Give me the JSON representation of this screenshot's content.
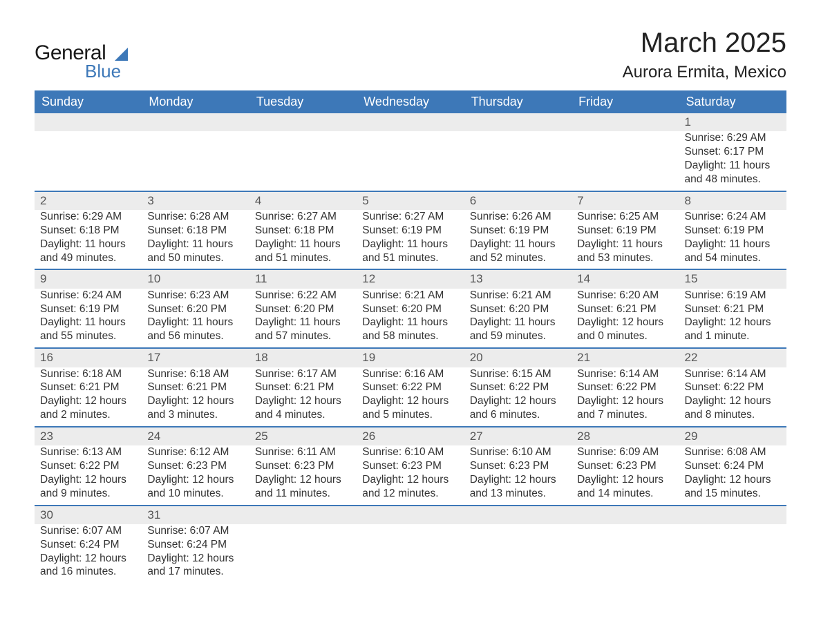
{
  "brand": {
    "name1": "General",
    "name2": "Blue",
    "accent": "#3d78b8"
  },
  "title": {
    "monthYear": "March 2025",
    "location": "Aurora Ermita, Mexico"
  },
  "calendar": {
    "type": "table",
    "headerBg": "#3d78b8",
    "headerText": "#ffffff",
    "altRowBg": "#ececec",
    "borderColor": "#3d78b8",
    "days": [
      "Sunday",
      "Monday",
      "Tuesday",
      "Wednesday",
      "Thursday",
      "Friday",
      "Saturday"
    ],
    "weeks": [
      [
        null,
        null,
        null,
        null,
        null,
        null,
        {
          "n": "1",
          "sr": "Sunrise: 6:29 AM",
          "ss": "Sunset: 6:17 PM",
          "dl": "Daylight: 11 hours and 48 minutes."
        }
      ],
      [
        {
          "n": "2",
          "sr": "Sunrise: 6:29 AM",
          "ss": "Sunset: 6:18 PM",
          "dl": "Daylight: 11 hours and 49 minutes."
        },
        {
          "n": "3",
          "sr": "Sunrise: 6:28 AM",
          "ss": "Sunset: 6:18 PM",
          "dl": "Daylight: 11 hours and 50 minutes."
        },
        {
          "n": "4",
          "sr": "Sunrise: 6:27 AM",
          "ss": "Sunset: 6:18 PM",
          "dl": "Daylight: 11 hours and 51 minutes."
        },
        {
          "n": "5",
          "sr": "Sunrise: 6:27 AM",
          "ss": "Sunset: 6:19 PM",
          "dl": "Daylight: 11 hours and 51 minutes."
        },
        {
          "n": "6",
          "sr": "Sunrise: 6:26 AM",
          "ss": "Sunset: 6:19 PM",
          "dl": "Daylight: 11 hours and 52 minutes."
        },
        {
          "n": "7",
          "sr": "Sunrise: 6:25 AM",
          "ss": "Sunset: 6:19 PM",
          "dl": "Daylight: 11 hours and 53 minutes."
        },
        {
          "n": "8",
          "sr": "Sunrise: 6:24 AM",
          "ss": "Sunset: 6:19 PM",
          "dl": "Daylight: 11 hours and 54 minutes."
        }
      ],
      [
        {
          "n": "9",
          "sr": "Sunrise: 6:24 AM",
          "ss": "Sunset: 6:19 PM",
          "dl": "Daylight: 11 hours and 55 minutes."
        },
        {
          "n": "10",
          "sr": "Sunrise: 6:23 AM",
          "ss": "Sunset: 6:20 PM",
          "dl": "Daylight: 11 hours and 56 minutes."
        },
        {
          "n": "11",
          "sr": "Sunrise: 6:22 AM",
          "ss": "Sunset: 6:20 PM",
          "dl": "Daylight: 11 hours and 57 minutes."
        },
        {
          "n": "12",
          "sr": "Sunrise: 6:21 AM",
          "ss": "Sunset: 6:20 PM",
          "dl": "Daylight: 11 hours and 58 minutes."
        },
        {
          "n": "13",
          "sr": "Sunrise: 6:21 AM",
          "ss": "Sunset: 6:20 PM",
          "dl": "Daylight: 11 hours and 59 minutes."
        },
        {
          "n": "14",
          "sr": "Sunrise: 6:20 AM",
          "ss": "Sunset: 6:21 PM",
          "dl": "Daylight: 12 hours and 0 minutes."
        },
        {
          "n": "15",
          "sr": "Sunrise: 6:19 AM",
          "ss": "Sunset: 6:21 PM",
          "dl": "Daylight: 12 hours and 1 minute."
        }
      ],
      [
        {
          "n": "16",
          "sr": "Sunrise: 6:18 AM",
          "ss": "Sunset: 6:21 PM",
          "dl": "Daylight: 12 hours and 2 minutes."
        },
        {
          "n": "17",
          "sr": "Sunrise: 6:18 AM",
          "ss": "Sunset: 6:21 PM",
          "dl": "Daylight: 12 hours and 3 minutes."
        },
        {
          "n": "18",
          "sr": "Sunrise: 6:17 AM",
          "ss": "Sunset: 6:21 PM",
          "dl": "Daylight: 12 hours and 4 minutes."
        },
        {
          "n": "19",
          "sr": "Sunrise: 6:16 AM",
          "ss": "Sunset: 6:22 PM",
          "dl": "Daylight: 12 hours and 5 minutes."
        },
        {
          "n": "20",
          "sr": "Sunrise: 6:15 AM",
          "ss": "Sunset: 6:22 PM",
          "dl": "Daylight: 12 hours and 6 minutes."
        },
        {
          "n": "21",
          "sr": "Sunrise: 6:14 AM",
          "ss": "Sunset: 6:22 PM",
          "dl": "Daylight: 12 hours and 7 minutes."
        },
        {
          "n": "22",
          "sr": "Sunrise: 6:14 AM",
          "ss": "Sunset: 6:22 PM",
          "dl": "Daylight: 12 hours and 8 minutes."
        }
      ],
      [
        {
          "n": "23",
          "sr": "Sunrise: 6:13 AM",
          "ss": "Sunset: 6:22 PM",
          "dl": "Daylight: 12 hours and 9 minutes."
        },
        {
          "n": "24",
          "sr": "Sunrise: 6:12 AM",
          "ss": "Sunset: 6:23 PM",
          "dl": "Daylight: 12 hours and 10 minutes."
        },
        {
          "n": "25",
          "sr": "Sunrise: 6:11 AM",
          "ss": "Sunset: 6:23 PM",
          "dl": "Daylight: 12 hours and 11 minutes."
        },
        {
          "n": "26",
          "sr": "Sunrise: 6:10 AM",
          "ss": "Sunset: 6:23 PM",
          "dl": "Daylight: 12 hours and 12 minutes."
        },
        {
          "n": "27",
          "sr": "Sunrise: 6:10 AM",
          "ss": "Sunset: 6:23 PM",
          "dl": "Daylight: 12 hours and 13 minutes."
        },
        {
          "n": "28",
          "sr": "Sunrise: 6:09 AM",
          "ss": "Sunset: 6:23 PM",
          "dl": "Daylight: 12 hours and 14 minutes."
        },
        {
          "n": "29",
          "sr": "Sunrise: 6:08 AM",
          "ss": "Sunset: 6:24 PM",
          "dl": "Daylight: 12 hours and 15 minutes."
        }
      ],
      [
        {
          "n": "30",
          "sr": "Sunrise: 6:07 AM",
          "ss": "Sunset: 6:24 PM",
          "dl": "Daylight: 12 hours and 16 minutes."
        },
        {
          "n": "31",
          "sr": "Sunrise: 6:07 AM",
          "ss": "Sunset: 6:24 PM",
          "dl": "Daylight: 12 hours and 17 minutes."
        },
        null,
        null,
        null,
        null,
        null
      ]
    ]
  }
}
